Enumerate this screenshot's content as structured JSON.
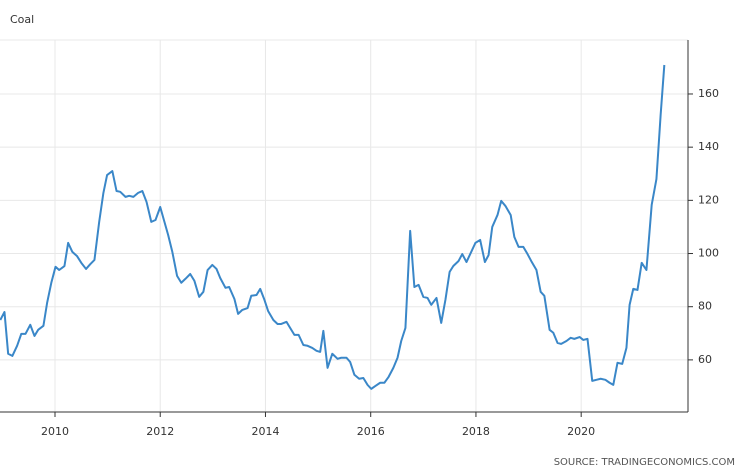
{
  "chart_data": {
    "type": "line",
    "title": "Coal",
    "source": "SOURCE: TRADINGECONOMICS.COM",
    "x": [
      2008.96,
      2009.04,
      2009.11,
      2009.19,
      2009.28,
      2009.36,
      2009.44,
      2009.53,
      2009.61,
      2009.68,
      2009.78,
      2009.85,
      2009.93,
      2010.01,
      2010.08,
      2010.18,
      2010.25,
      2010.33,
      2010.42,
      2010.5,
      2010.59,
      2010.67,
      2010.75,
      2010.84,
      2010.92,
      2010.99,
      2011.09,
      2011.17,
      2011.24,
      2011.34,
      2011.41,
      2011.49,
      2011.58,
      2011.66,
      2011.74,
      2011.83,
      2011.91,
      2012.0,
      2012.08,
      2012.15,
      2012.23,
      2012.32,
      2012.4,
      2012.48,
      2012.57,
      2012.65,
      2012.74,
      2012.82,
      2012.9,
      2012.99,
      2013.07,
      2013.14,
      2013.24,
      2013.31,
      2013.41,
      2013.48,
      2013.56,
      2013.66,
      2013.73,
      2013.83,
      2013.9,
      2013.98,
      2014.05,
      2014.15,
      2014.23,
      2014.3,
      2014.4,
      2014.47,
      2014.55,
      2014.63,
      2014.72,
      2014.8,
      2014.89,
      2014.97,
      2015.04,
      2015.1,
      2015.18,
      2015.27,
      2015.37,
      2015.44,
      2015.54,
      2015.61,
      2015.69,
      2015.78,
      2015.86,
      2015.94,
      2016.01,
      2016.09,
      2016.18,
      2016.26,
      2016.34,
      2016.43,
      2016.51,
      2016.58,
      2016.66,
      2016.75,
      2016.83,
      2016.91,
      2017.0,
      2017.08,
      2017.15,
      2017.25,
      2017.34,
      2017.42,
      2017.5,
      2017.57,
      2017.67,
      2017.74,
      2017.82,
      2017.91,
      2017.99,
      2018.08,
      2018.17,
      2018.24,
      2018.31,
      2018.41,
      2018.48,
      2018.56,
      2018.66,
      2018.73,
      2018.81,
      2018.9,
      2018.98,
      2019.05,
      2019.15,
      2019.23,
      2019.3,
      2019.4,
      2019.47,
      2019.55,
      2019.62,
      2019.72,
      2019.8,
      2019.87,
      2019.97,
      2020.04,
      2020.12,
      2020.21,
      2020.29,
      2020.37,
      2020.46,
      2020.54,
      2020.61,
      2020.69,
      2020.78,
      2020.86,
      2020.92,
      2020.99,
      2021.07,
      2021.15,
      2021.24,
      2021.34,
      2021.43,
      2021.51,
      2021.58
    ],
    "series": [
      {
        "name": "Coal",
        "color": "#3a87c8",
        "values": [
          75,
          78,
          62.3,
          61.5,
          65.3,
          69.8,
          69.8,
          73.2,
          69,
          71.3,
          72.8,
          81.4,
          89,
          95,
          93.8,
          95.3,
          104,
          100.6,
          99,
          96.5,
          94.2,
          96,
          97.6,
          111.9,
          122.8,
          129.5,
          131,
          123.5,
          123.2,
          121.3,
          121.7,
          121.3,
          122.8,
          123.5,
          119.4,
          111.9,
          112.6,
          117.5,
          111.9,
          107,
          100.6,
          91.6,
          89,
          90.5,
          92.3,
          89.7,
          83.7,
          85.6,
          93.8,
          95.7,
          94.2,
          90.8,
          87.1,
          87.4,
          82.9,
          77.3,
          78.8,
          79.5,
          84.1,
          84.4,
          86.7,
          82.6,
          78.4,
          75,
          73.5,
          73.5,
          74.3,
          72,
          69.4,
          69.4,
          65.6,
          65.3,
          64.5,
          63.4,
          63,
          70.9,
          57,
          62.3,
          60.4,
          60.8,
          60.8,
          59.2,
          54.4,
          52.9,
          53.2,
          50.6,
          49.1,
          50.2,
          51.4,
          51.4,
          53.6,
          57,
          60.8,
          67.1,
          72,
          108.5,
          87.4,
          88.2,
          83.7,
          83.3,
          80.7,
          83.3,
          73.9,
          82.6,
          93.1,
          95.3,
          97.2,
          99.8,
          96.8,
          100.6,
          104,
          105.1,
          96.8,
          99.4,
          110,
          114.5,
          119.8,
          117.9,
          114.5,
          106.2,
          102.5,
          102.5,
          99.8,
          97.2,
          93.8,
          85.6,
          84.1,
          71.3,
          70.2,
          66.4,
          66,
          67.1,
          68.3,
          67.9,
          68.6,
          67.5,
          67.9,
          52.1,
          52.5,
          52.9,
          52.5,
          51.4,
          50.6,
          58.9,
          58.5,
          64.5,
          80.7,
          86.7,
          86.3,
          96.5,
          93.8,
          118.3,
          128,
          152.1,
          170.9
        ]
      }
    ],
    "xlim": [
      2008.955,
      2022.03
    ],
    "xticks": [
      2010,
      2012,
      2014,
      2016,
      2018,
      2020
    ],
    "ylim": [
      40.4,
      180.3
    ],
    "yticks": [
      60,
      80,
      100,
      120,
      140,
      160
    ],
    "grid": true
  }
}
